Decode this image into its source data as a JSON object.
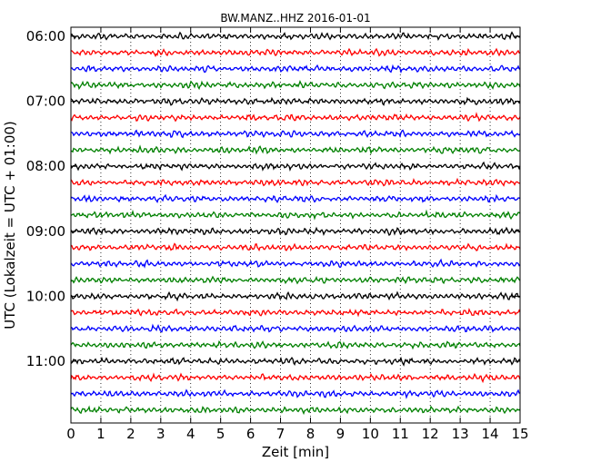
{
  "chart_data": {
    "type": "line",
    "title": "BW.MANZ..HHZ 2016-01-01",
    "xlabel": "Zeit  [min]",
    "ylabel": "UTC (Lokalzeit = UTC + 01:00)",
    "xlim": [
      0,
      15
    ],
    "x_ticks": [
      "0",
      "1",
      "2",
      "3",
      "4",
      "5",
      "6",
      "7",
      "8",
      "9",
      "10",
      "11",
      "12",
      "13",
      "14",
      "15"
    ],
    "grid": "vertical dotted",
    "time_labels": [
      "06:00",
      "07:00",
      "08:00",
      "09:00",
      "10:00",
      "11:00"
    ],
    "traces_per_hour": 4,
    "trace_colors": [
      "#000000",
      "#ff0000",
      "#0000ff",
      "#008000"
    ],
    "series": [
      {
        "start": "06:00"
      },
      {
        "start": "06:15"
      },
      {
        "start": "06:30"
      },
      {
        "start": "06:45"
      },
      {
        "start": "07:00"
      },
      {
        "start": "07:15"
      },
      {
        "start": "07:30"
      },
      {
        "start": "07:45"
      },
      {
        "start": "08:00"
      },
      {
        "start": "08:15"
      },
      {
        "start": "08:30"
      },
      {
        "start": "08:45"
      },
      {
        "start": "09:00"
      },
      {
        "start": "09:15"
      },
      {
        "start": "09:30"
      },
      {
        "start": "09:45"
      },
      {
        "start": "10:00"
      },
      {
        "start": "10:15"
      },
      {
        "start": "10:30"
      },
      {
        "start": "10:45"
      },
      {
        "start": "11:00"
      },
      {
        "start": "11:15"
      },
      {
        "start": "11:30"
      },
      {
        "start": "11:45"
      }
    ]
  }
}
